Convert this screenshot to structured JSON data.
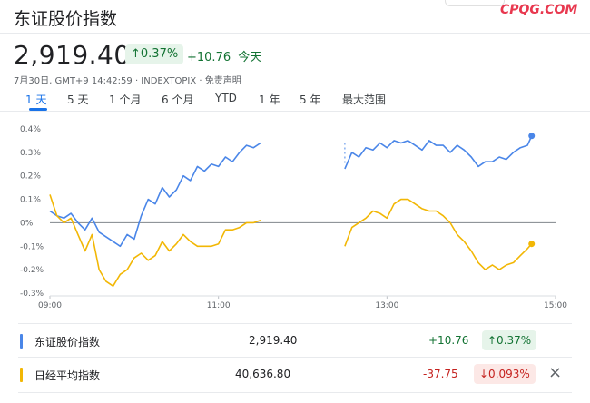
{
  "header": {
    "title": "东证股价指数",
    "watermark": "CPQG.COM",
    "price": "2,919.40",
    "change_pct": "↑0.37%",
    "change_abs": "+10.76",
    "change_period": "今天",
    "meta": "7月30日, GMT+9 14:42:59 · INDEXTOPIX · 免责声明"
  },
  "tabs": [
    {
      "label": "1 天",
      "active": true
    },
    {
      "label": "5 天"
    },
    {
      "label": "1 个月"
    },
    {
      "label": "6 个月"
    },
    {
      "label": "YTD"
    },
    {
      "label": "1 年"
    },
    {
      "label": "5 年"
    },
    {
      "label": "最大范围"
    }
  ],
  "chart_data": {
    "type": "line",
    "x_ticks": [
      "09:00",
      "11:00",
      "13:00",
      "15:00"
    ],
    "y_ticks": [
      "0.4%",
      "0.3%",
      "0.2%",
      "0.1%",
      "0%",
      "-0.1%",
      "-0.2%",
      "-0.3%"
    ],
    "ylim": [
      -0.3,
      0.4
    ],
    "xlim": [
      "09:00",
      "15:00"
    ],
    "baseline": 0,
    "lunch_break": [
      "11:30",
      "12:30"
    ],
    "series": [
      {
        "name": "东证股价指数",
        "color": "#4a86e8",
        "points": [
          [
            "09:00",
            0.05
          ],
          [
            "09:05",
            0.03
          ],
          [
            "09:10",
            0.02
          ],
          [
            "09:15",
            0.04
          ],
          [
            "09:20",
            0.0
          ],
          [
            "09:25",
            -0.03
          ],
          [
            "09:30",
            0.02
          ],
          [
            "09:35",
            -0.04
          ],
          [
            "09:40",
            -0.06
          ],
          [
            "09:45",
            -0.08
          ],
          [
            "09:50",
            -0.1
          ],
          [
            "09:55",
            -0.05
          ],
          [
            "10:00",
            -0.07
          ],
          [
            "10:05",
            0.03
          ],
          [
            "10:10",
            0.1
          ],
          [
            "10:15",
            0.08
          ],
          [
            "10:20",
            0.15
          ],
          [
            "10:25",
            0.11
          ],
          [
            "10:30",
            0.14
          ],
          [
            "10:35",
            0.2
          ],
          [
            "10:40",
            0.18
          ],
          [
            "10:45",
            0.24
          ],
          [
            "10:50",
            0.22
          ],
          [
            "10:55",
            0.25
          ],
          [
            "11:00",
            0.24
          ],
          [
            "11:05",
            0.28
          ],
          [
            "11:10",
            0.26
          ],
          [
            "11:15",
            0.3
          ],
          [
            "11:20",
            0.33
          ],
          [
            "11:25",
            0.32
          ],
          [
            "11:30",
            0.34
          ],
          [
            "12:30",
            0.23
          ],
          [
            "12:35",
            0.3
          ],
          [
            "12:40",
            0.28
          ],
          [
            "12:45",
            0.32
          ],
          [
            "12:50",
            0.31
          ],
          [
            "12:55",
            0.34
          ],
          [
            "13:00",
            0.32
          ],
          [
            "13:05",
            0.35
          ],
          [
            "13:10",
            0.34
          ],
          [
            "13:15",
            0.35
          ],
          [
            "13:20",
            0.33
          ],
          [
            "13:25",
            0.31
          ],
          [
            "13:30",
            0.35
          ],
          [
            "13:35",
            0.33
          ],
          [
            "13:40",
            0.33
          ],
          [
            "13:45",
            0.3
          ],
          [
            "13:50",
            0.33
          ],
          [
            "13:55",
            0.31
          ],
          [
            "14:00",
            0.28
          ],
          [
            "14:05",
            0.24
          ],
          [
            "14:10",
            0.26
          ],
          [
            "14:15",
            0.26
          ],
          [
            "14:20",
            0.28
          ],
          [
            "14:25",
            0.27
          ],
          [
            "14:30",
            0.3
          ],
          [
            "14:35",
            0.32
          ],
          [
            "14:40",
            0.33
          ],
          [
            "14:43",
            0.37
          ]
        ]
      },
      {
        "name": "日经平均指数",
        "color": "#f2b705",
        "points": [
          [
            "09:00",
            0.12
          ],
          [
            "09:05",
            0.03
          ],
          [
            "09:10",
            0.0
          ],
          [
            "09:15",
            0.02
          ],
          [
            "09:20",
            -0.05
          ],
          [
            "09:25",
            -0.12
          ],
          [
            "09:30",
            -0.05
          ],
          [
            "09:35",
            -0.2
          ],
          [
            "09:40",
            -0.25
          ],
          [
            "09:45",
            -0.27
          ],
          [
            "09:50",
            -0.22
          ],
          [
            "09:55",
            -0.2
          ],
          [
            "10:00",
            -0.15
          ],
          [
            "10:05",
            -0.13
          ],
          [
            "10:10",
            -0.16
          ],
          [
            "10:15",
            -0.14
          ],
          [
            "10:20",
            -0.08
          ],
          [
            "10:25",
            -0.12
          ],
          [
            "10:30",
            -0.09
          ],
          [
            "10:35",
            -0.05
          ],
          [
            "10:40",
            -0.08
          ],
          [
            "10:45",
            -0.1
          ],
          [
            "10:50",
            -0.1
          ],
          [
            "10:55",
            -0.1
          ],
          [
            "11:00",
            -0.09
          ],
          [
            "11:05",
            -0.03
          ],
          [
            "11:10",
            -0.03
          ],
          [
            "11:15",
            -0.02
          ],
          [
            "11:20",
            0.0
          ],
          [
            "11:25",
            0.0
          ],
          [
            "11:30",
            0.01
          ],
          [
            "12:30",
            -0.1
          ],
          [
            "12:35",
            -0.02
          ],
          [
            "12:40",
            0.0
          ],
          [
            "12:45",
            0.02
          ],
          [
            "12:50",
            0.05
          ],
          [
            "12:55",
            0.04
          ],
          [
            "13:00",
            0.02
          ],
          [
            "13:05",
            0.08
          ],
          [
            "13:10",
            0.1
          ],
          [
            "13:15",
            0.1
          ],
          [
            "13:20",
            0.08
          ],
          [
            "13:25",
            0.06
          ],
          [
            "13:30",
            0.05
          ],
          [
            "13:35",
            0.05
          ],
          [
            "13:40",
            0.03
          ],
          [
            "13:45",
            0.0
          ],
          [
            "13:50",
            -0.05
          ],
          [
            "13:55",
            -0.08
          ],
          [
            "14:00",
            -0.12
          ],
          [
            "14:05",
            -0.17
          ],
          [
            "14:10",
            -0.2
          ],
          [
            "14:15",
            -0.18
          ],
          [
            "14:20",
            -0.2
          ],
          [
            "14:25",
            -0.18
          ],
          [
            "14:30",
            -0.17
          ],
          [
            "14:35",
            -0.14
          ],
          [
            "14:40",
            -0.11
          ],
          [
            "14:43",
            -0.09
          ]
        ]
      }
    ]
  },
  "legend_rows": [
    {
      "name": "东证股价指数",
      "color": "#4a86e8",
      "price": "2,919.40",
      "change": "+10.76",
      "change_color": "#137333",
      "pct": "↑0.37%",
      "pct_bg": "#e6f4ea",
      "pct_color": "#137333"
    },
    {
      "name": "日经平均指数",
      "color": "#f2b705",
      "price": "40,636.80",
      "change": "-37.75",
      "change_color": "#c5221f",
      "pct": "↓0.093%",
      "pct_bg": "#fce8e6",
      "pct_color": "#c5221f",
      "close_icon": "×"
    }
  ]
}
